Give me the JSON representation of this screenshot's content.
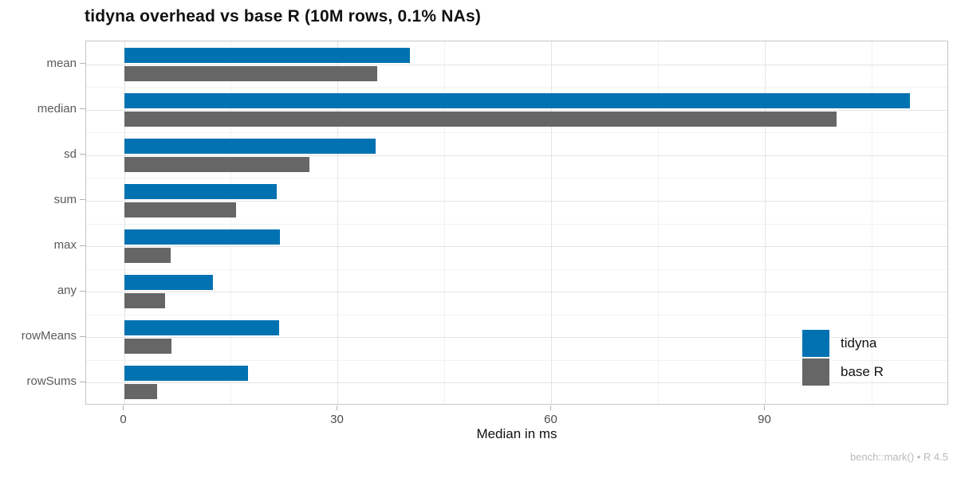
{
  "title": "tidyna overhead vs base R (10M rows, 0.1% NAs)",
  "chart_data": {
    "type": "bar",
    "orientation": "horizontal",
    "title": "tidyna overhead vs base R (10M rows, 0.1% NAs)",
    "xlabel": "Median in ms",
    "ylabel": "",
    "caption": "bench::mark() • R 4.5",
    "categories": [
      "mean",
      "median",
      "sd",
      "sum",
      "max",
      "any",
      "rowMeans",
      "rowSums"
    ],
    "series": [
      {
        "name": "tidyna",
        "color": "#0072B2",
        "values": [
          40.1,
          110.3,
          35.3,
          21.4,
          21.9,
          12.5,
          21.8,
          17.4
        ]
      },
      {
        "name": "base R",
        "color": "#666666",
        "values": [
          35.5,
          100.0,
          26.0,
          15.7,
          6.6,
          5.8,
          6.7,
          4.7
        ]
      }
    ],
    "x_major_ticks": [
      0,
      30,
      60,
      90
    ],
    "x_minor_ticks": [
      15,
      45,
      75,
      105
    ],
    "xlim": [
      -5.3,
      115.9
    ],
    "grid": true,
    "legend_position": "inside-right",
    "legend_entries": [
      "tidyna",
      "base R"
    ]
  }
}
